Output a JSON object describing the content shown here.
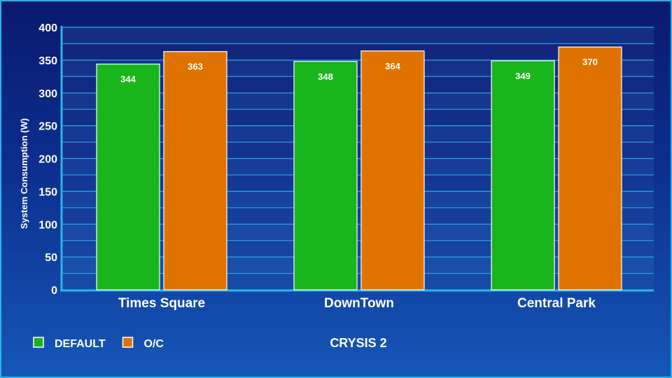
{
  "chart_data": {
    "type": "bar",
    "title": "CRYSIS 2",
    "ylabel": "System Consumption (W)",
    "xlabel": "",
    "ylim": [
      0,
      400
    ],
    "yticks": [
      0,
      50,
      100,
      150,
      200,
      250,
      300,
      350,
      400
    ],
    "categories": [
      "Times Square",
      "DownTown",
      "Central Park"
    ],
    "series": [
      {
        "name": "DEFAULT",
        "color": "#19b51c",
        "values": [
          344,
          348,
          349
        ]
      },
      {
        "name": "O/C",
        "color": "#e07300",
        "values": [
          363,
          364,
          370
        ]
      }
    ],
    "grid": true,
    "legend_position": "bottom-left",
    "data_labels": true
  },
  "colors": {
    "background_top": "#0a1a6e",
    "background_bottom": "#1557b8",
    "axis": "#29b6e6",
    "text": "#ffffff"
  }
}
